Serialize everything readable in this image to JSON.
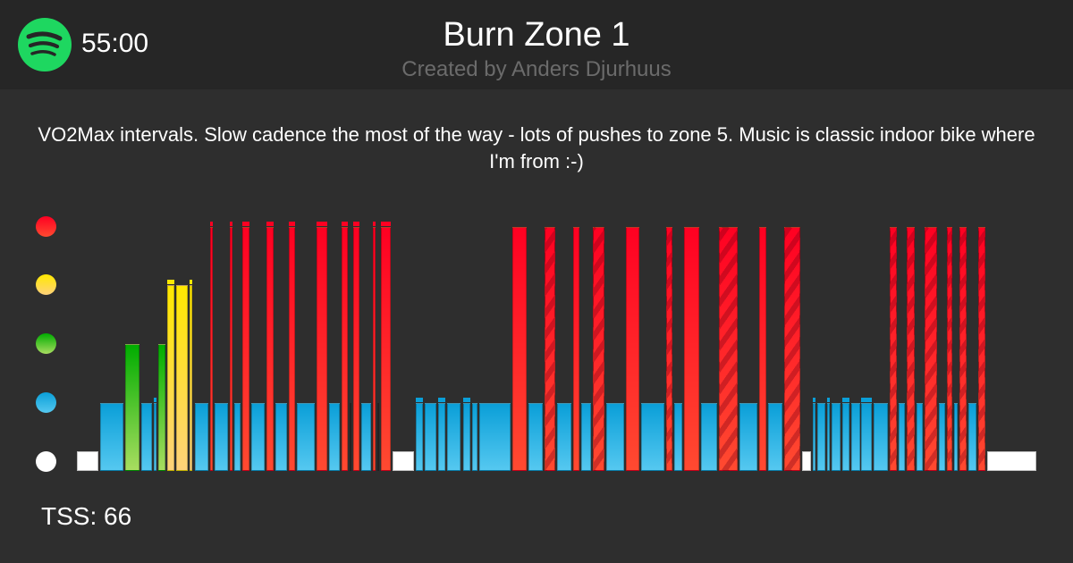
{
  "header": {
    "duration": "55:00",
    "title": "Burn Zone 1",
    "author": "Created by Anders Djurhuus",
    "logo_icon": "spotify-icon"
  },
  "description": "VO2Max intervals. Slow cadence the most of the way - lots of pushes to zone 5. Music is classic indoor bike where I'm from :-)",
  "footer": {
    "tss_label": "TSS: 66"
  },
  "zones": [
    {
      "name": "zone-5",
      "color": "#ff1a2a",
      "y": 253
    },
    {
      "name": "zone-4",
      "color": "#ffe21a",
      "y": 318
    },
    {
      "name": "zone-3",
      "color": "#2fb52f",
      "y": 384
    },
    {
      "name": "zone-2",
      "color": "#16a9e0",
      "y": 450
    },
    {
      "name": "zone-1",
      "color": "#ffffff",
      "y": 516
    }
  ],
  "chart_data": {
    "type": "bar",
    "title": "Burn Zone 1",
    "xlabel": "",
    "ylabel": "Intensity zone",
    "ylim": [
      0,
      5
    ],
    "legend": [
      "zone 1 (white)",
      "zone 2 (blue)",
      "zone 3 (green)",
      "zone 4 (yellow)",
      "zone 5 (red)",
      "zone 5 striped (standing/alt)"
    ],
    "baseline_y": 527,
    "zone_top_y": {
      "1": 505,
      "2": 451,
      "3": 385,
      "4": 319,
      "5": 254
    },
    "segments": [
      {
        "x": 86,
        "w": 24,
        "zone": 1
      },
      {
        "x": 112,
        "w": 26,
        "zone": 2
      },
      {
        "x": 140,
        "w": 16,
        "zone": 3
      },
      {
        "x": 158,
        "w": 12,
        "zone": 2
      },
      {
        "x": 172,
        "w": 3,
        "zone": 2,
        "cap": true
      },
      {
        "x": 177,
        "w": 8,
        "zone": 3
      },
      {
        "x": 187,
        "w": 8,
        "zone": 4,
        "cap": true
      },
      {
        "x": 197,
        "w": 13,
        "zone": 4
      },
      {
        "x": 212,
        "w": 3,
        "zone": 4,
        "cap": true
      },
      {
        "x": 218,
        "w": 15,
        "zone": 2
      },
      {
        "x": 235,
        "w": 3,
        "zone": 5,
        "cap": true
      },
      {
        "x": 240,
        "w": 15,
        "zone": 2
      },
      {
        "x": 257,
        "w": 3,
        "zone": 5,
        "cap": true
      },
      {
        "x": 262,
        "w": 7,
        "zone": 2
      },
      {
        "x": 271,
        "w": 8,
        "zone": 5,
        "cap": true
      },
      {
        "x": 281,
        "w": 15,
        "zone": 2
      },
      {
        "x": 298,
        "w": 8,
        "zone": 5,
        "cap": true
      },
      {
        "x": 308,
        "w": 13,
        "zone": 2
      },
      {
        "x": 323,
        "w": 7,
        "zone": 5,
        "cap": true
      },
      {
        "x": 332,
        "w": 20,
        "zone": 2
      },
      {
        "x": 354,
        "w": 12,
        "zone": 5,
        "cap": true
      },
      {
        "x": 368,
        "w": 12,
        "zone": 2
      },
      {
        "x": 382,
        "w": 7,
        "zone": 5,
        "cap": true
      },
      {
        "x": 391,
        "w": 2,
        "zone": 2
      },
      {
        "x": 395,
        "w": 7,
        "zone": 5,
        "cap": true
      },
      {
        "x": 404,
        "w": 11,
        "zone": 2
      },
      {
        "x": 417,
        "w": 3,
        "zone": 5,
        "cap": true
      },
      {
        "x": 422,
        "w": 2,
        "zone": 2
      },
      {
        "x": 426,
        "w": 11,
        "zone": 5,
        "cap": true
      },
      {
        "x": 439,
        "w": 24,
        "zone": 1
      },
      {
        "x": 465,
        "w": 8,
        "zone": 2,
        "cap": true
      },
      {
        "x": 475,
        "w": 13,
        "zone": 2
      },
      {
        "x": 490,
        "w": 8,
        "zone": 2,
        "cap": true
      },
      {
        "x": 500,
        "w": 15,
        "zone": 2
      },
      {
        "x": 518,
        "w": 8,
        "zone": 2,
        "cap": true
      },
      {
        "x": 528,
        "w": 6,
        "zone": 2
      },
      {
        "x": 536,
        "w": 35,
        "zone": 2
      },
      {
        "x": 573,
        "w": 16,
        "zone": 5
      },
      {
        "x": 591,
        "w": 16,
        "zone": 2
      },
      {
        "x": 609,
        "w": 12,
        "zone": 5,
        "striped": true
      },
      {
        "x": 623,
        "w": 16,
        "zone": 2
      },
      {
        "x": 641,
        "w": 7,
        "zone": 5
      },
      {
        "x": 650,
        "w": 11,
        "zone": 2
      },
      {
        "x": 663,
        "w": 13,
        "zone": 5,
        "striped": true
      },
      {
        "x": 678,
        "w": 20,
        "zone": 2
      },
      {
        "x": 700,
        "w": 15,
        "zone": 5
      },
      {
        "x": 717,
        "w": 26,
        "zone": 2
      },
      {
        "x": 745,
        "w": 7,
        "zone": 5,
        "striped": true
      },
      {
        "x": 754,
        "w": 9,
        "zone": 2
      },
      {
        "x": 765,
        "w": 17,
        "zone": 5
      },
      {
        "x": 784,
        "w": 18,
        "zone": 2
      },
      {
        "x": 804,
        "w": 21,
        "zone": 5,
        "striped": true
      },
      {
        "x": 827,
        "w": 20,
        "zone": 2
      },
      {
        "x": 849,
        "w": 8,
        "zone": 5
      },
      {
        "x": 859,
        "w": 16,
        "zone": 2
      },
      {
        "x": 877,
        "w": 18,
        "zone": 5,
        "striped": true
      },
      {
        "x": 897,
        "w": 10,
        "zone": 1
      },
      {
        "x": 909,
        "w": 3,
        "zone": 2,
        "cap": true
      },
      {
        "x": 914,
        "w": 9,
        "zone": 2
      },
      {
        "x": 925,
        "w": 3,
        "zone": 2,
        "cap": true
      },
      {
        "x": 930,
        "w": 10,
        "zone": 2
      },
      {
        "x": 942,
        "w": 8,
        "zone": 2,
        "cap": true
      },
      {
        "x": 952,
        "w": 10,
        "zone": 2
      },
      {
        "x": 963,
        "w": 12,
        "zone": 2,
        "cap": true
      },
      {
        "x": 977,
        "w": 16,
        "zone": 2
      },
      {
        "x": 995,
        "w": 8,
        "zone": 5,
        "striped": true
      },
      {
        "x": 1005,
        "w": 7,
        "zone": 2
      },
      {
        "x": 1014,
        "w": 9,
        "zone": 5,
        "striped": true
      },
      {
        "x": 1025,
        "w": 7,
        "zone": 2
      },
      {
        "x": 1034,
        "w": 14,
        "zone": 5,
        "striped": true
      },
      {
        "x": 1050,
        "w": 7,
        "zone": 2
      },
      {
        "x": 1059,
        "w": 6,
        "zone": 5,
        "striped": true
      },
      {
        "x": 1067,
        "w": 4,
        "zone": 2
      },
      {
        "x": 1073,
        "w": 8,
        "zone": 5,
        "striped": true
      },
      {
        "x": 1083,
        "w": 9,
        "zone": 2
      },
      {
        "x": 1094,
        "w": 8,
        "zone": 5,
        "striped": true
      },
      {
        "x": 1104,
        "w": 55,
        "zone": 1
      }
    ]
  }
}
